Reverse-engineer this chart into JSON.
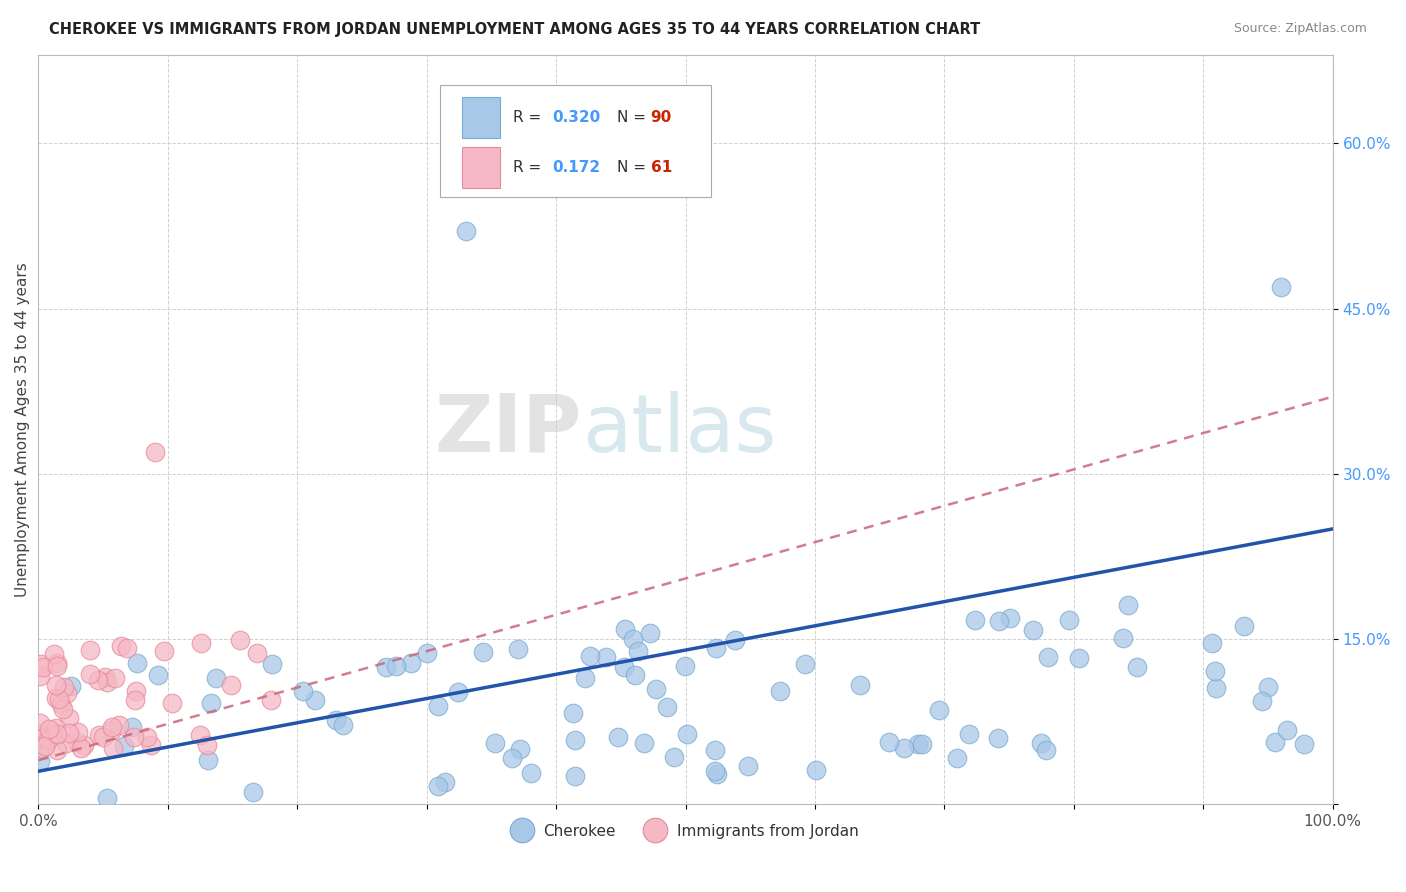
{
  "title": "CHEROKEE VS IMMIGRANTS FROM JORDAN UNEMPLOYMENT AMONG AGES 35 TO 44 YEARS CORRELATION CHART",
  "source": "Source: ZipAtlas.com",
  "ylabel": "Unemployment Among Ages 35 to 44 years",
  "xlim": [
    0,
    1.0
  ],
  "ylim": [
    0,
    0.68
  ],
  "ytick_labels": [
    "",
    "15.0%",
    "30.0%",
    "45.0%",
    "60.0%"
  ],
  "ytick_values": [
    0.0,
    0.15,
    0.3,
    0.45,
    0.6
  ],
  "xtick_labels": [
    "0.0%",
    "",
    "",
    "",
    "",
    "",
    "",
    "",
    "",
    "",
    "100.0%"
  ],
  "xtick_values": [
    0.0,
    0.1,
    0.2,
    0.3,
    0.4,
    0.5,
    0.6,
    0.7,
    0.8,
    0.9,
    1.0
  ],
  "cherokee_R": 0.32,
  "cherokee_N": 90,
  "jordan_R": 0.172,
  "jordan_N": 61,
  "cherokee_color": "#a8c8e8",
  "cherokee_edge_color": "#7aabcf",
  "cherokee_line_color": "#2255aa",
  "jordan_color": "#f5b8c4",
  "jordan_edge_color": "#e88898",
  "jordan_line_color": "#cc6677",
  "legend_R_color": "#4499ff",
  "legend_N_color": "#cc2200",
  "background_color": "#ffffff",
  "grid_color": "#cccccc",
  "watermark_zip": "ZIP",
  "watermark_atlas": "atlas",
  "title_color": "#222222",
  "source_color": "#888888",
  "ylabel_color": "#444444",
  "tick_color": "#555555",
  "ytick_color": "#4499ff"
}
